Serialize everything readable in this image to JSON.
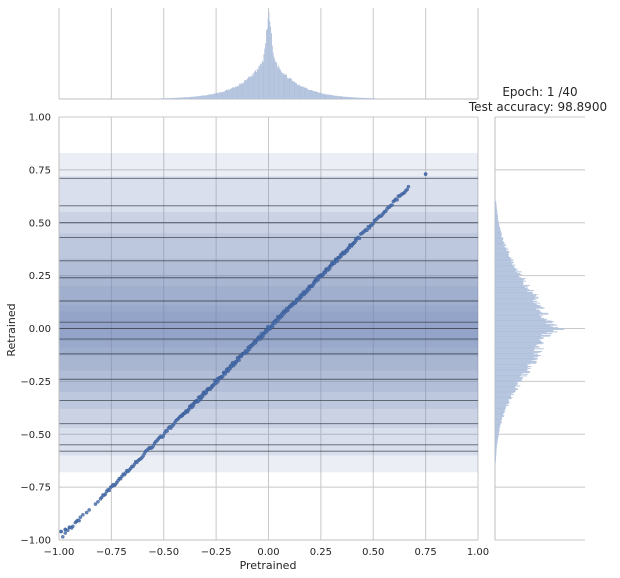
{
  "chart_data": {
    "type": "scatter",
    "title_line1": "Epoch: 1 /40",
    "title_line2": "Test accuracy: 98.8900",
    "xlabel": "Pretrained",
    "ylabel": "Retrained",
    "xlim": [
      -1.0,
      1.0
    ],
    "ylim": [
      -1.0,
      1.0
    ],
    "x_ticks": [
      -1.0,
      -0.75,
      -0.5,
      -0.25,
      0.0,
      0.25,
      0.5,
      0.75,
      1.0
    ],
    "x_tick_labels": [
      "−1.00",
      "−0.75",
      "−0.50",
      "−0.25",
      "0.00",
      "0.25",
      "0.50",
      "0.75",
      "1.00"
    ],
    "y_ticks": [
      -1.0,
      -0.75,
      -0.5,
      -0.25,
      0.0,
      0.25,
      0.5,
      0.75,
      1.0
    ],
    "y_tick_labels": [
      "−1.00",
      "−0.75",
      "−0.50",
      "−0.25",
      "0.00",
      "0.25",
      "0.50",
      "0.75",
      "1.00"
    ],
    "grid": true,
    "point_color": "#4c72b0",
    "hist_color": "#b0c1dc",
    "band_color": "#7089b8",
    "line_color": "#3a3f4a",
    "scatter": {
      "x_range": [
        -1.0,
        0.67
      ],
      "y_equals_x": true,
      "outliers": [
        [
          -0.99,
          -0.96
        ],
        [
          -0.97,
          -0.95
        ],
        [
          -0.95,
          -0.94
        ],
        [
          0.75,
          0.73
        ]
      ]
    },
    "cluster_lines": [
      0.71,
      0.58,
      0.5,
      0.43,
      0.32,
      0.24,
      0.13,
      0.03,
      0.0,
      -0.05,
      -0.12,
      -0.24,
      -0.34,
      -0.45,
      -0.55,
      -0.58
    ],
    "cluster_bands": [
      [
        -0.68,
        0.83
      ],
      [
        -0.6,
        0.72
      ],
      [
        -0.47,
        0.55
      ],
      [
        -0.38,
        0.45
      ],
      [
        -0.3,
        0.33
      ],
      [
        -0.2,
        0.25
      ],
      [
        -0.13,
        0.2
      ],
      [
        -0.09,
        0.11
      ],
      [
        -0.06,
        0.08
      ]
    ],
    "marginal_x": {
      "center": 0.0,
      "spread": 0.12,
      "peak": 1.0
    },
    "marginal_y": {
      "center": 0.0,
      "spread": 0.22,
      "peak": 1.0
    }
  }
}
